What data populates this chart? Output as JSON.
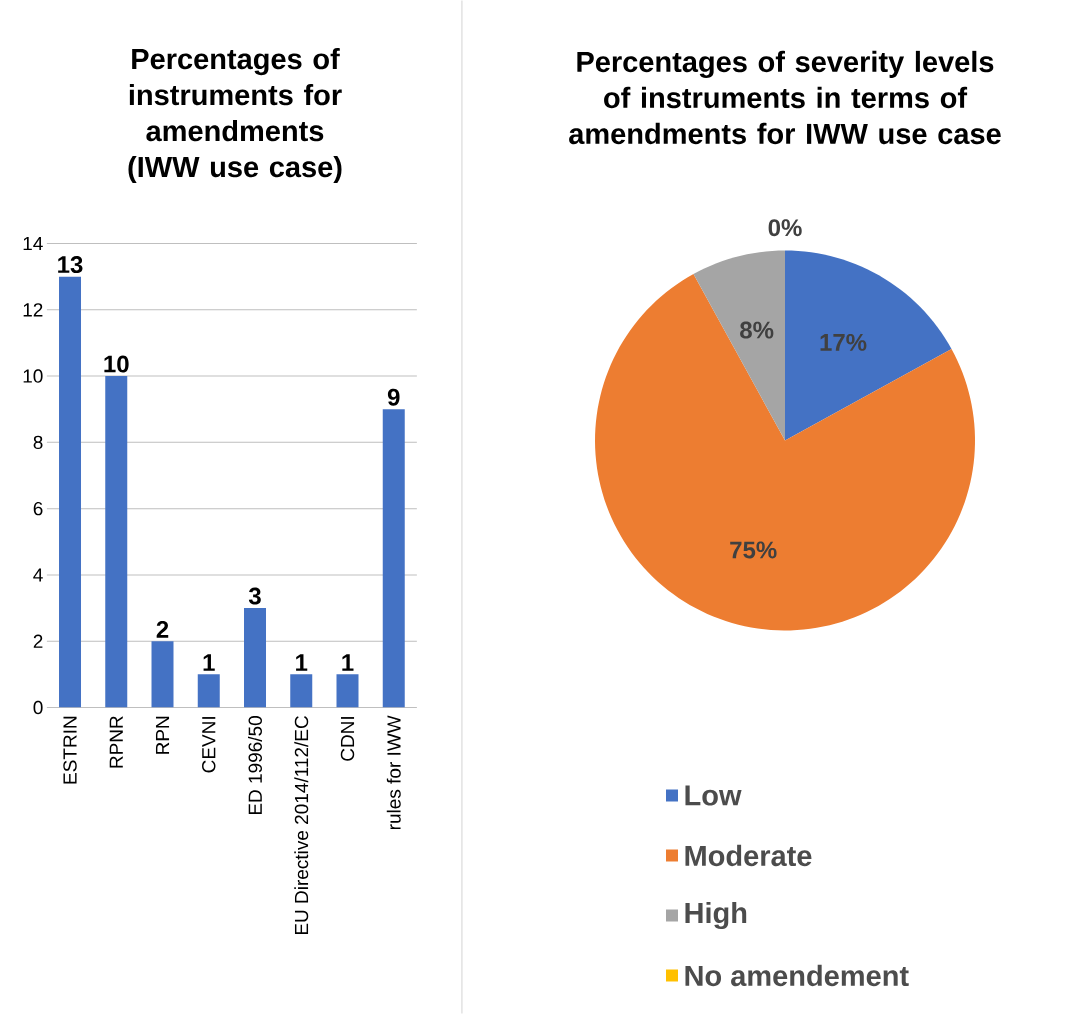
{
  "chart_data": [
    {
      "type": "bar",
      "title": "Percentages of instruments for amendments (IWW use case)",
      "categories": [
        "ESTRIN",
        "RPNR",
        "RPN",
        "CEVNI",
        "ED 1996/50",
        "EU Directive 2014/112/EC",
        "CDNI",
        "rules for IWW"
      ],
      "values": [
        13,
        10,
        2,
        1,
        3,
        1,
        1,
        9
      ],
      "color": "#4472c4",
      "ylim": [
        0,
        14
      ],
      "yticks": [
        0,
        2,
        4,
        6,
        8,
        10,
        12,
        14
      ],
      "grid": "y",
      "data_labels": true
    },
    {
      "type": "pie",
      "title": "Percentages of severity levels of instruments in terms of amendments for IWW use case",
      "categories": [
        "Low",
        "Moderate",
        "High",
        "No amendement"
      ],
      "values": [
        17,
        75,
        8,
        0
      ],
      "value_labels": [
        "17%",
        "75%",
        "8%",
        "0%"
      ],
      "colors": [
        "#4472c4",
        "#ed7d31",
        "#a5a5a5",
        "#ffc000"
      ],
      "data_labels": true,
      "legend": "bottom"
    }
  ]
}
